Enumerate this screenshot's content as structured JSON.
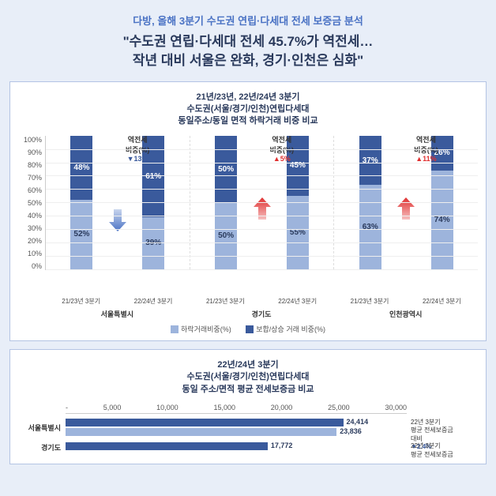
{
  "header": {
    "subtitle": "다방, 올해 3분기 수도권 연립·다세대 전세 보증금 분석",
    "title_line1": "\"수도권 연립·다세대 전세 45.7%가 역전세…",
    "title_line2": "작년 대비 서울은 완화, 경기·인천은 심화\""
  },
  "chart1": {
    "title_line1": "21년/23년, 22년/24년 3분기",
    "title_line2": "수도권(서울/경기/인천)연립다세대",
    "title_line3": "동일주소/동일 면적 하락거래 비중 비교",
    "y_ticks": [
      "100%",
      "90%",
      "80%",
      "70%",
      "60%",
      "50%",
      "40%",
      "30%",
      "20%",
      "10%",
      "0%"
    ],
    "x_label_1": "21/23년 3분기",
    "x_label_2": "22/24년 3분기",
    "regions": [
      {
        "name": "서울특별시",
        "bars": [
          {
            "bottom": 52,
            "top": 48,
            "bottom_label": "52%",
            "top_label": "48%"
          },
          {
            "bottom": 39,
            "top": 61,
            "bottom_label": "39%",
            "top_label": "61%"
          }
        ],
        "callout": {
          "label": "역전세",
          "label2": "비중(%)",
          "value": "▼13%",
          "color": "#3a5a9c"
        },
        "arrow_color": "#4a72c4",
        "arrow_dir": "down"
      },
      {
        "name": "경기도",
        "bars": [
          {
            "bottom": 50,
            "top": 50,
            "bottom_label": "50%",
            "top_label": "50%"
          },
          {
            "bottom": 55,
            "top": 45,
            "bottom_label": "55%",
            "top_label": "45%"
          }
        ],
        "callout": {
          "label": "역전세",
          "label2": "비중(%)",
          "value": "▲5%",
          "color": "#e03030"
        },
        "arrow_color": "#e03030",
        "arrow_dir": "up"
      },
      {
        "name": "인천광역시",
        "bars": [
          {
            "bottom": 63,
            "top": 37,
            "bottom_label": "63%",
            "top_label": "37%"
          },
          {
            "bottom": 74,
            "top": 26,
            "bottom_label": "74%",
            "top_label": "26%"
          }
        ],
        "callout": {
          "label": "역전세",
          "label2": "비중(%)",
          "value": "▲11%",
          "color": "#e03030"
        },
        "arrow_color": "#e03030",
        "arrow_dir": "up"
      }
    ],
    "legend": {
      "item1": "하락거래비중(%)",
      "item2": "보합/상승 거래 비중(%)",
      "color1": "#9db4dc",
      "color2": "#3a5a9c"
    }
  },
  "chart2": {
    "title_line1": "22년/24년 3분기",
    "title_line2": "수도권(서울/경기/인천)연립다세대",
    "title_line3": "동일 주소/면적 평균 전세보증금 비교",
    "x_ticks": [
      "-",
      "5,000",
      "10,000",
      "15,000",
      "20,000",
      "25,000",
      "30,000"
    ],
    "x_max": 30000,
    "rows": [
      {
        "label": "서울특별시",
        "bar1": {
          "value": 24414,
          "label": "24,414",
          "color": "#3a5a9c"
        },
        "bar2": {
          "value": 23836,
          "label": "23,836",
          "color": "#9db4dc"
        },
        "note": {
          "line1": "22년 3분기",
          "line2": "평균 전세보증금",
          "line3": "대비",
          "pct": "▼2.4%",
          "pct_color": "#3a5a9c"
        }
      },
      {
        "label": "경기도",
        "bar1": {
          "value": 17772,
          "label": "17,772",
          "color": "#3a5a9c"
        },
        "note": {
          "line1": "22년 3분기",
          "line2": "평균 전세보증금"
        }
      }
    ]
  }
}
